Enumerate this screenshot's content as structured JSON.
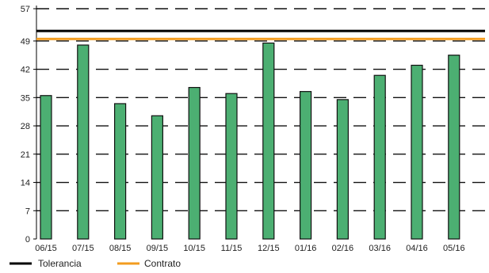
{
  "chart_data": {
    "type": "bar",
    "categories": [
      "06/15",
      "07/15",
      "08/15",
      "09/15",
      "10/15",
      "11/15",
      "12/15",
      "01/16",
      "02/16",
      "03/16",
      "04/16",
      "05/16"
    ],
    "series": [
      {
        "values": [
          35.5,
          48,
          33.5,
          30.5,
          37.5,
          36,
          48.5,
          36.5,
          34.5,
          40.5,
          43,
          45.5
        ]
      }
    ],
    "lines": [
      {
        "name": "Tolerancia",
        "value": 51.5,
        "color": "#000000"
      },
      {
        "name": "Contrato",
        "value": 49.5,
        "color": "#f39c1f"
      }
    ],
    "yticks": [
      0,
      7,
      14,
      21,
      28,
      35,
      42,
      49,
      57
    ],
    "ylim": [
      0,
      57
    ],
    "grid": true,
    "legend_position": "bottom-left",
    "colors": {
      "bar_fill": "#4caf72",
      "bar_stroke": "#111111",
      "grid": "#111111"
    }
  }
}
